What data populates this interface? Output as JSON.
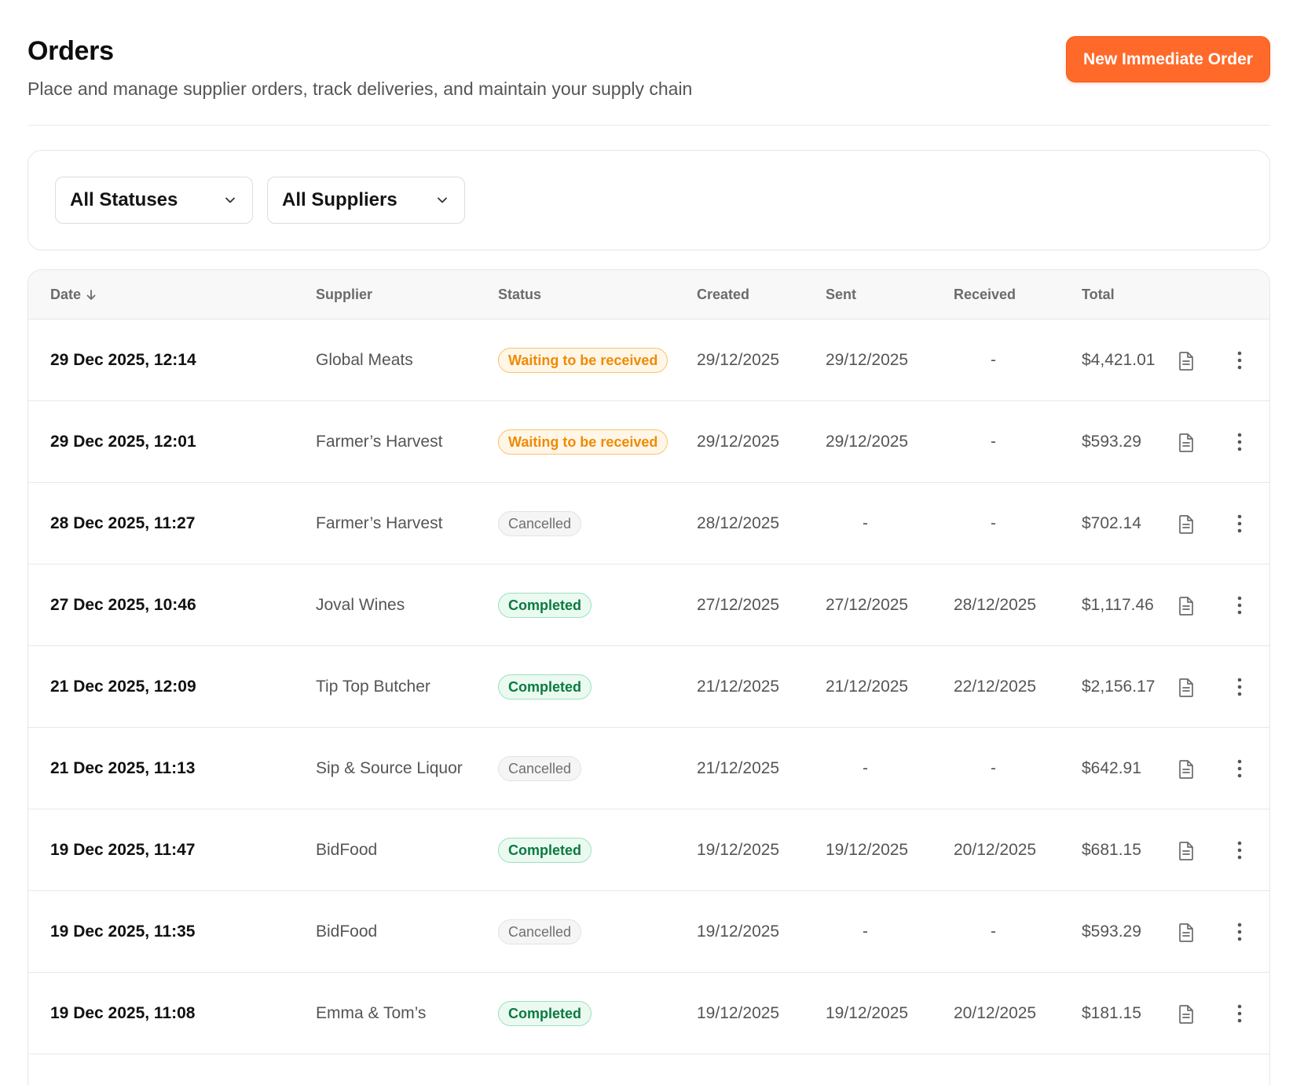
{
  "header": {
    "title": "Orders",
    "subtitle": "Place and manage supplier orders, track deliveries, and maintain your supply chain",
    "new_order_label": "New Immediate Order"
  },
  "filters": {
    "status_selected": "All Statuses",
    "supplier_selected": "All Suppliers"
  },
  "table": {
    "columns": {
      "date": "Date",
      "supplier": "Supplier",
      "status": "Status",
      "created": "Created",
      "sent": "Sent",
      "received": "Received",
      "total": "Total"
    },
    "sort": {
      "column": "date",
      "direction": "descending"
    },
    "rows": [
      {
        "date": "29 Dec 2025, 12:14",
        "supplier": "Global Meats",
        "status": "Waiting to be received",
        "status_kind": "waiting",
        "created": "29/12/2025",
        "sent": "29/12/2025",
        "received": "-",
        "total": "$4,421.01"
      },
      {
        "date": "29 Dec 2025, 12:01",
        "supplier": "Farmer’s Harvest",
        "status": "Waiting to be received",
        "status_kind": "waiting",
        "created": "29/12/2025",
        "sent": "29/12/2025",
        "received": "-",
        "total": "$593.29"
      },
      {
        "date": "28 Dec 2025, 11:27",
        "supplier": "Farmer’s Harvest",
        "status": "Cancelled",
        "status_kind": "cancelled",
        "created": "28/12/2025",
        "sent": "-",
        "received": "-",
        "total": "$702.14"
      },
      {
        "date": "27 Dec 2025, 10:46",
        "supplier": "Joval Wines",
        "status": "Completed",
        "status_kind": "completed",
        "created": "27/12/2025",
        "sent": "27/12/2025",
        "received": "28/12/2025",
        "total": "$1,117.46"
      },
      {
        "date": "21 Dec 2025, 12:09",
        "supplier": "Tip Top Butcher",
        "status": "Completed",
        "status_kind": "completed",
        "created": "21/12/2025",
        "sent": "21/12/2025",
        "received": "22/12/2025",
        "total": "$2,156.17"
      },
      {
        "date": "21 Dec 2025, 11:13",
        "supplier": "Sip & Source Liquor",
        "status": "Cancelled",
        "status_kind": "cancelled",
        "created": "21/12/2025",
        "sent": "-",
        "received": "-",
        "total": "$642.91"
      },
      {
        "date": "19 Dec 2025, 11:47",
        "supplier": "BidFood",
        "status": "Completed",
        "status_kind": "completed",
        "created": "19/12/2025",
        "sent": "19/12/2025",
        "received": "20/12/2025",
        "total": "$681.15"
      },
      {
        "date": "19 Dec 2025, 11:35",
        "supplier": "BidFood",
        "status": "Cancelled",
        "status_kind": "cancelled",
        "created": "19/12/2025",
        "sent": "-",
        "received": "-",
        "total": "$593.29"
      },
      {
        "date": "19 Dec 2025, 11:08",
        "supplier": "Emma & Tom’s",
        "status": "Completed",
        "status_kind": "completed",
        "created": "19/12/2025",
        "sent": "19/12/2025",
        "received": "20/12/2025",
        "total": "$181.15"
      }
    ]
  },
  "icons": {
    "sort": "arrow-down-icon",
    "chevron": "chevron-down-icon",
    "document": "document-icon",
    "more": "more-vertical-icon"
  },
  "colors": {
    "accent": "#ff6a2b",
    "waiting": "#f08a00",
    "completed": "#0b7a40",
    "cancelled": "#707070"
  }
}
